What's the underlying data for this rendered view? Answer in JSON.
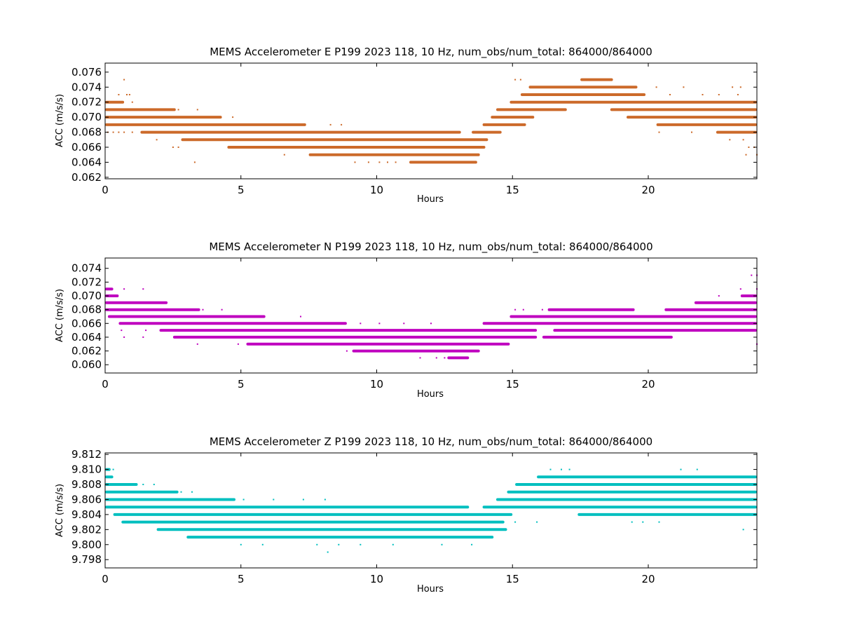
{
  "chart_data": [
    {
      "type": "scatter",
      "title": "MEMS Accelerometer E P199 2023 118, 10 Hz, num_obs/num_total: 864000/864000",
      "xlabel": "Hours",
      "ylabel": "ACC (m/s/s)",
      "xlim": [
        0,
        24
      ],
      "ylim": [
        0.0618,
        0.0772
      ],
      "x_ticks": [
        "0",
        "5",
        "10",
        "15",
        "20"
      ],
      "y_ticks": [
        "0.062",
        "0.064",
        "0.066",
        "0.068",
        "0.070",
        "0.072",
        "0.074",
        "0.076"
      ],
      "color": "#cc6a2a",
      "segments": [
        {
          "y": 0.075,
          "x": [
            [
              17.5,
              18.7
            ]
          ]
        },
        {
          "y": 0.074,
          "x": [
            [
              15.6,
              19.6
            ]
          ]
        },
        {
          "y": 0.073,
          "x": [
            [
              15.3,
              19.9
            ]
          ]
        },
        {
          "y": 0.072,
          "x": [
            [
              0.0,
              0.7
            ],
            [
              14.9,
              24.0
            ]
          ]
        },
        {
          "y": 0.071,
          "x": [
            [
              0.0,
              2.6
            ],
            [
              14.4,
              17.0
            ],
            [
              18.6,
              24.0
            ]
          ]
        },
        {
          "y": 0.07,
          "x": [
            [
              0.0,
              4.3
            ],
            [
              14.2,
              15.8
            ],
            [
              19.2,
              24.0
            ]
          ]
        },
        {
          "y": 0.069,
          "x": [
            [
              0.0,
              7.4
            ],
            [
              13.9,
              15.5
            ],
            [
              20.3,
              24.0
            ]
          ]
        },
        {
          "y": 0.068,
          "x": [
            [
              1.3,
              13.1
            ],
            [
              13.5,
              14.6
            ],
            [
              22.5,
              24.0
            ]
          ]
        },
        {
          "y": 0.067,
          "x": [
            [
              2.8,
              14.1
            ]
          ]
        },
        {
          "y": 0.066,
          "x": [
            [
              4.5,
              14.0
            ]
          ]
        },
        {
          "y": 0.065,
          "x": [
            [
              7.5,
              13.8
            ]
          ]
        },
        {
          "y": 0.064,
          "x": [
            [
              11.2,
              13.7
            ]
          ]
        }
      ],
      "points": [
        [
          0.7,
          0.075
        ],
        [
          0.5,
          0.073
        ],
        [
          0.8,
          0.073
        ],
        [
          0.9,
          0.073
        ],
        [
          1.0,
          0.072
        ],
        [
          3.4,
          0.071
        ],
        [
          2.7,
          0.071
        ],
        [
          4.7,
          0.07
        ],
        [
          1.9,
          0.067
        ],
        [
          2.5,
          0.066
        ],
        [
          2.7,
          0.066
        ],
        [
          3.3,
          0.064
        ],
        [
          6.6,
          0.065
        ],
        [
          8.3,
          0.069
        ],
        [
          8.7,
          0.069
        ],
        [
          9.2,
          0.064
        ],
        [
          9.7,
          0.064
        ],
        [
          10.1,
          0.064
        ],
        [
          10.4,
          0.064
        ],
        [
          10.7,
          0.064
        ],
        [
          15.1,
          0.075
        ],
        [
          15.3,
          0.075
        ],
        [
          20.3,
          0.074
        ],
        [
          20.8,
          0.073
        ],
        [
          21.3,
          0.074
        ],
        [
          22.0,
          0.073
        ],
        [
          22.6,
          0.073
        ],
        [
          23.1,
          0.074
        ],
        [
          23.4,
          0.074
        ],
        [
          23.3,
          0.073
        ],
        [
          20.4,
          0.068
        ],
        [
          21.6,
          0.068
        ],
        [
          23.0,
          0.067
        ],
        [
          23.5,
          0.067
        ],
        [
          23.7,
          0.066
        ],
        [
          23.9,
          0.066
        ],
        [
          23.6,
          0.065
        ],
        [
          24.0,
          0.065
        ],
        [
          0.1,
          0.068
        ],
        [
          0.3,
          0.068
        ],
        [
          0.5,
          0.068
        ],
        [
          0.7,
          0.068
        ],
        [
          1.0,
          0.068
        ]
      ]
    },
    {
      "type": "scatter",
      "title": "MEMS Accelerometer N P199 2023 118, 10 Hz, num_obs/num_total: 864000/864000",
      "xlabel": "Hours",
      "ylabel": "ACC (m/s/s)",
      "xlim": [
        0,
        24
      ],
      "ylim": [
        0.0588,
        0.0755
      ],
      "x_ticks": [
        "0",
        "5",
        "10",
        "15",
        "20"
      ],
      "y_ticks": [
        "0.060",
        "0.062",
        "0.064",
        "0.066",
        "0.068",
        "0.070",
        "0.072",
        "0.074"
      ],
      "color": "#bf00bf",
      "segments": [
        {
          "y": 0.071,
          "x": [
            [
              0.0,
              0.3
            ]
          ]
        },
        {
          "y": 0.07,
          "x": [
            [
              0.0,
              0.5
            ],
            [
              23.4,
              24.0
            ]
          ]
        },
        {
          "y": 0.069,
          "x": [
            [
              0.0,
              2.3
            ],
            [
              21.7,
              24.0
            ]
          ]
        },
        {
          "y": 0.068,
          "x": [
            [
              0.0,
              3.5
            ],
            [
              16.3,
              19.5
            ],
            [
              20.6,
              24.0
            ]
          ]
        },
        {
          "y": 0.067,
          "x": [
            [
              0.1,
              5.9
            ],
            [
              14.9,
              24.0
            ]
          ]
        },
        {
          "y": 0.066,
          "x": [
            [
              0.5,
              8.9
            ],
            [
              13.9,
              24.0
            ]
          ]
        },
        {
          "y": 0.065,
          "x": [
            [
              2.0,
              15.9
            ],
            [
              16.5,
              24.0
            ]
          ]
        },
        {
          "y": 0.064,
          "x": [
            [
              2.5,
              15.9
            ],
            [
              16.1,
              20.9
            ]
          ]
        },
        {
          "y": 0.063,
          "x": [
            [
              5.2,
              14.9
            ]
          ]
        },
        {
          "y": 0.062,
          "x": [
            [
              9.1,
              13.8
            ]
          ]
        },
        {
          "y": 0.061,
          "x": [
            [
              12.6,
              13.4
            ]
          ]
        }
      ],
      "points": [
        [
          0.7,
          0.071
        ],
        [
          1.4,
          0.071
        ],
        [
          3.6,
          0.068
        ],
        [
          4.3,
          0.068
        ],
        [
          7.2,
          0.067
        ],
        [
          8.9,
          0.062
        ],
        [
          4.9,
          0.063
        ],
        [
          3.4,
          0.063
        ],
        [
          11.6,
          0.061
        ],
        [
          12.2,
          0.061
        ],
        [
          12.5,
          0.061
        ],
        [
          13.0,
          0.061
        ],
        [
          15.1,
          0.068
        ],
        [
          15.4,
          0.068
        ],
        [
          16.1,
          0.068
        ],
        [
          20.7,
          0.067
        ],
        [
          23.8,
          0.073
        ],
        [
          24.0,
          0.073
        ],
        [
          23.4,
          0.071
        ],
        [
          24.0,
          0.071
        ],
        [
          22.6,
          0.07
        ],
        [
          0.6,
          0.065
        ],
        [
          1.5,
          0.065
        ],
        [
          0.7,
          0.064
        ],
        [
          1.4,
          0.064
        ],
        [
          24.0,
          0.063
        ],
        [
          15.3,
          0.064
        ],
        [
          9.4,
          0.066
        ],
        [
          10.1,
          0.066
        ],
        [
          11.0,
          0.066
        ],
        [
          12.0,
          0.066
        ],
        [
          12.8,
          0.065
        ]
      ]
    },
    {
      "type": "scatter",
      "title": "MEMS Accelerometer Z P199 2023 118, 10 Hz, num_obs/num_total: 864000/864000",
      "xlabel": "Hours",
      "ylabel": "ACC (m/s/s)",
      "xlim": [
        0,
        24
      ],
      "ylim": [
        9.7969,
        9.8122
      ],
      "x_ticks": [
        "0",
        "5",
        "10",
        "15",
        "20"
      ],
      "y_ticks": [
        "9.798",
        "9.800",
        "9.802",
        "9.804",
        "9.806",
        "9.808",
        "9.810",
        "9.812"
      ],
      "color": "#00bfbf",
      "segments": [
        {
          "y": 9.81,
          "x": [
            [
              0.0,
              0.2
            ]
          ]
        },
        {
          "y": 9.809,
          "x": [
            [
              0.0,
              0.3
            ],
            [
              15.9,
              24.0
            ]
          ]
        },
        {
          "y": 9.808,
          "x": [
            [
              0.0,
              1.2
            ],
            [
              15.1,
              24.0
            ]
          ]
        },
        {
          "y": 9.807,
          "x": [
            [
              0.0,
              2.7
            ],
            [
              14.8,
              24.0
            ]
          ]
        },
        {
          "y": 9.806,
          "x": [
            [
              0.0,
              4.8
            ],
            [
              14.4,
              24.0
            ]
          ]
        },
        {
          "y": 9.805,
          "x": [
            [
              0.0,
              13.4
            ],
            [
              13.9,
              24.0
            ]
          ]
        },
        {
          "y": 9.804,
          "x": [
            [
              0.3,
              15.0
            ],
            [
              17.4,
              24.0
            ]
          ]
        },
        {
          "y": 9.803,
          "x": [
            [
              0.6,
              14.7
            ]
          ]
        },
        {
          "y": 9.802,
          "x": [
            [
              1.9,
              14.8
            ]
          ]
        },
        {
          "y": 9.801,
          "x": [
            [
              3.0,
              14.3
            ]
          ]
        }
      ],
      "points": [
        [
          0.3,
          9.81
        ],
        [
          1.4,
          9.808
        ],
        [
          1.8,
          9.808
        ],
        [
          2.8,
          9.807
        ],
        [
          3.2,
          9.807
        ],
        [
          5.0,
          9.8
        ],
        [
          5.8,
          9.8
        ],
        [
          8.2,
          9.799
        ],
        [
          7.8,
          9.8
        ],
        [
          8.6,
          9.8
        ],
        [
          9.4,
          9.8
        ],
        [
          10.6,
          9.8
        ],
        [
          12.4,
          9.8
        ],
        [
          13.5,
          9.8
        ],
        [
          5.1,
          9.806
        ],
        [
          6.2,
          9.806
        ],
        [
          7.3,
          9.806
        ],
        [
          8.1,
          9.806
        ],
        [
          10.1,
          9.805
        ],
        [
          10.5,
          9.805
        ],
        [
          11.8,
          9.805
        ],
        [
          12.3,
          9.805
        ],
        [
          15.1,
          9.803
        ],
        [
          15.9,
          9.803
        ],
        [
          16.4,
          9.81
        ],
        [
          16.8,
          9.81
        ],
        [
          17.1,
          9.81
        ],
        [
          21.2,
          9.81
        ],
        [
          21.8,
          9.81
        ],
        [
          23.5,
          9.802
        ],
        [
          19.3,
          9.809
        ],
        [
          19.9,
          9.809
        ],
        [
          20.4,
          9.809
        ],
        [
          19.4,
          9.803
        ],
        [
          19.8,
          9.803
        ],
        [
          20.4,
          9.803
        ],
        [
          22.0,
          9.804
        ],
        [
          22.4,
          9.804
        ],
        [
          15.6,
          9.807
        ],
        [
          14.9,
          9.806
        ]
      ]
    }
  ]
}
